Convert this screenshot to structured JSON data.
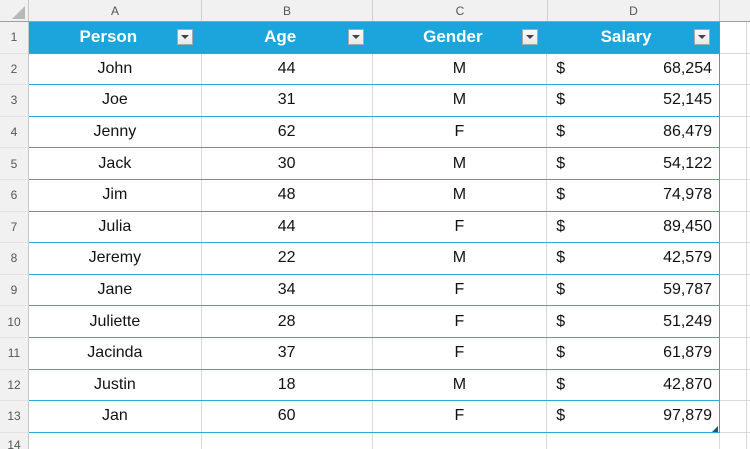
{
  "sheet": {
    "column_letters": [
      "A",
      "B",
      "C",
      "D"
    ],
    "row_numbers": [
      "1",
      "2",
      "3",
      "4",
      "5",
      "6",
      "7",
      "8",
      "9",
      "10",
      "11",
      "12",
      "13",
      "14"
    ]
  },
  "table": {
    "headers": [
      {
        "label": "Person"
      },
      {
        "label": "Age"
      },
      {
        "label": "Gender"
      },
      {
        "label": "Salary"
      }
    ],
    "rows": [
      {
        "person": "John",
        "age": "44",
        "gender": "M",
        "currency": "$",
        "salary": "68,254"
      },
      {
        "person": "Joe",
        "age": "31",
        "gender": "M",
        "currency": "$",
        "salary": "52,145"
      },
      {
        "person": "Jenny",
        "age": "62",
        "gender": "F",
        "currency": "$",
        "salary": "86,479"
      },
      {
        "person": "Jack",
        "age": "30",
        "gender": "M",
        "currency": "$",
        "salary": "54,122"
      },
      {
        "person": "Jim",
        "age": "48",
        "gender": "M",
        "currency": "$",
        "salary": "74,978"
      },
      {
        "person": "Julia",
        "age": "44",
        "gender": "F",
        "currency": "$",
        "salary": "89,450"
      },
      {
        "person": "Jeremy",
        "age": "22",
        "gender": "M",
        "currency": "$",
        "salary": "42,579"
      },
      {
        "person": "Jane",
        "age": "34",
        "gender": "F",
        "currency": "$",
        "salary": "59,787"
      },
      {
        "person": "Juliette",
        "age": "28",
        "gender": "F",
        "currency": "$",
        "salary": "51,249"
      },
      {
        "person": "Jacinda",
        "age": "37",
        "gender": "F",
        "currency": "$",
        "salary": "61,879"
      },
      {
        "person": "Justin",
        "age": "18",
        "gender": "M",
        "currency": "$",
        "salary": "42,870"
      },
      {
        "person": "Jan",
        "age": "60",
        "gender": "F",
        "currency": "$",
        "salary": "97,879"
      }
    ]
  },
  "colors": {
    "header_bg": "#1BA5DC",
    "table_border": "#29A9DD",
    "gridline": "#D9D9D9",
    "header_text": "#FFFFFF",
    "cell_text": "#121212",
    "resize_handle": "#17568C"
  }
}
